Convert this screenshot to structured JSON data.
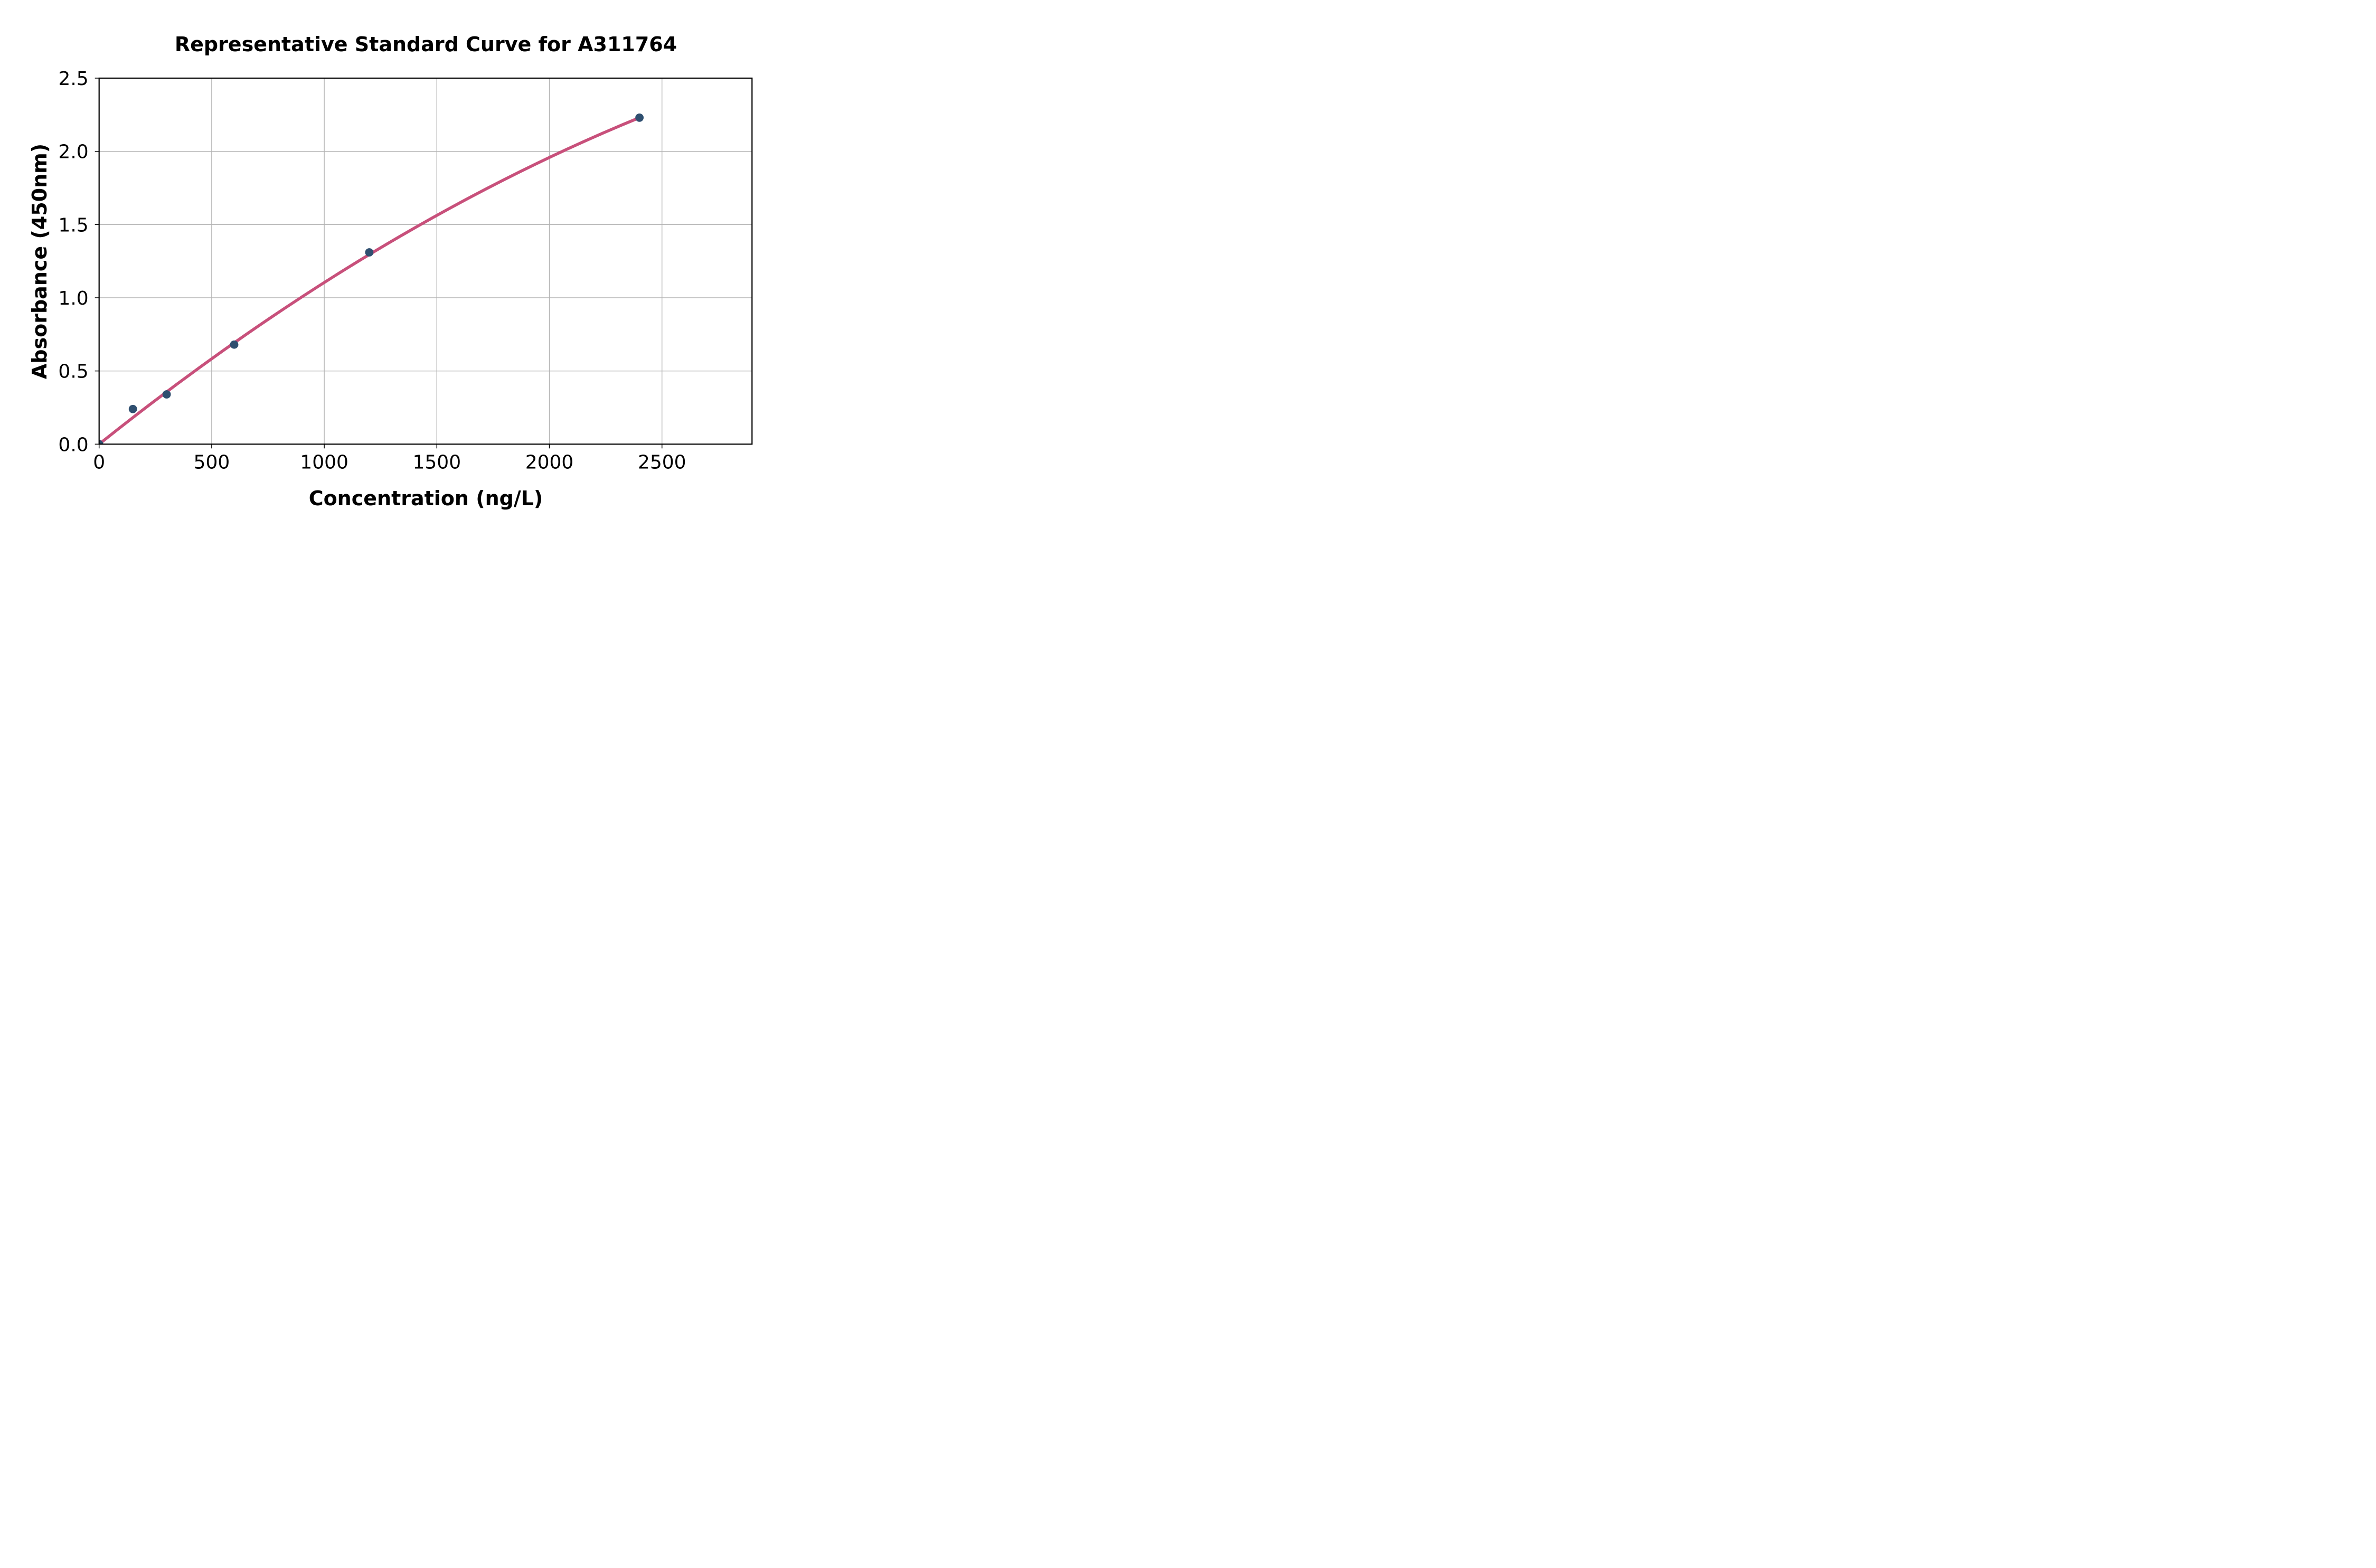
{
  "chart_data": {
    "type": "scatter",
    "title": "Representative Standard Curve for A311764",
    "xlabel": "Concentration (ng/L)",
    "ylabel": "Absorbance (450nm)",
    "x": [
      0,
      150,
      300,
      600,
      1200,
      2400
    ],
    "y": [
      0,
      0.24,
      0.34,
      0.68,
      1.31,
      2.23
    ],
    "trendline": {
      "type": "quadratic-fit",
      "sample_points": [
        [
          0,
          0
        ],
        [
          1200,
          1.295
        ],
        [
          2400,
          2.23
        ]
      ]
    },
    "x_ticks": [
      0,
      500,
      1000,
      1500,
      2000,
      2500
    ],
    "y_ticks": [
      0.0,
      0.5,
      1.0,
      1.5,
      2.0,
      2.5
    ],
    "y_tick_decimals": 1,
    "xlim": [
      0,
      2900
    ],
    "ylim": [
      0,
      2.5
    ],
    "grid": true,
    "legend": "none",
    "colors": {
      "marker": "#2F4F70",
      "line": "#C8507B",
      "grid": "#B3B3B3",
      "spine": "#000000",
      "text": "#000000",
      "background": "#FFFFFF"
    }
  }
}
